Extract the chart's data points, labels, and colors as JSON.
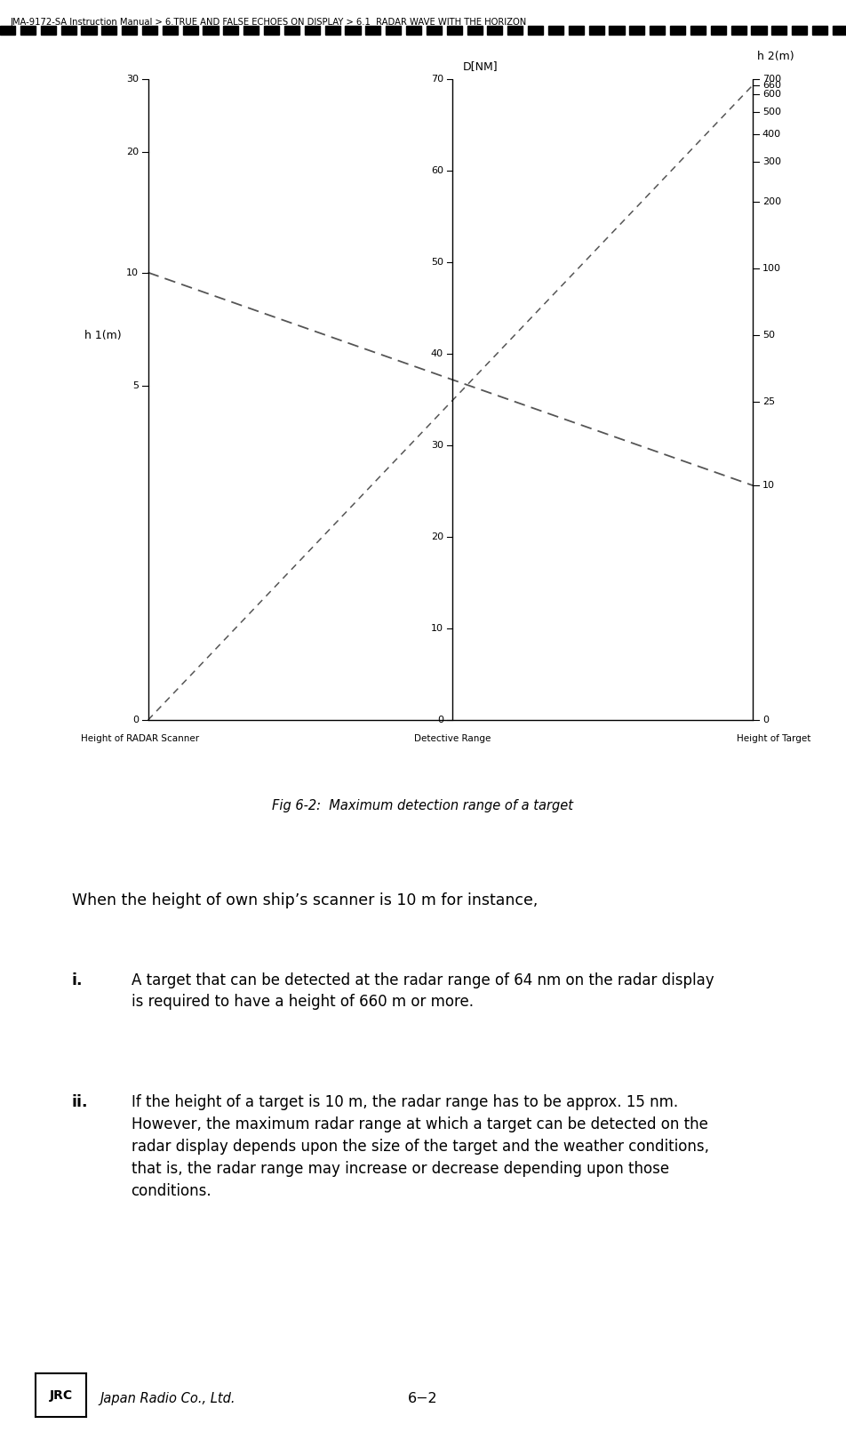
{
  "title_breadcrumb": "JMA-9172-SA Instruction Manual > 6.TRUE AND FALSE ECHOES ON DISPLAY > 6.1  RADAR WAVE WITH THE HORIZON",
  "fig_caption": "Fig 6-2:  Maximum detection range of a target",
  "h1_label": "h 1(m)",
  "d_label": "D[NM]",
  "h2_label": "h 2(m)",
  "axis_bottom_labels": [
    "Height of RADAR Scanner",
    "Detective Range",
    "Height of Target"
  ],
  "h1_ticks": [
    0,
    5,
    10,
    20,
    30
  ],
  "d_ticks": [
    0,
    10,
    20,
    30,
    40,
    50,
    60,
    70
  ],
  "h2_ticks": [
    0,
    10,
    25,
    50,
    100,
    200,
    300,
    400,
    500,
    600,
    660,
    700
  ],
  "page_number": "6−2",
  "background_color": "#ffffff",
  "text_color": "#000000",
  "dashed_line_color": "#555555"
}
